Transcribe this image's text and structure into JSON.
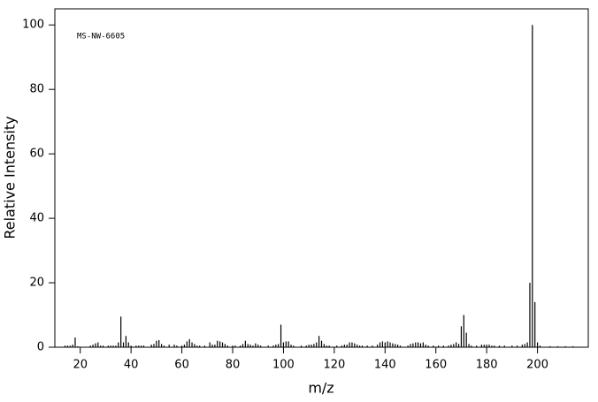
{
  "chart_data": {
    "type": "bar",
    "annotation": "MS-NW-6605",
    "xlabel": "m/z",
    "ylabel": "Relative Intensity",
    "color": "#000000",
    "xlim": [
      10,
      220
    ],
    "ylim": [
      0,
      105
    ],
    "xticks": [
      20,
      40,
      60,
      80,
      100,
      120,
      140,
      160,
      180,
      200
    ],
    "yticks": [
      0,
      20,
      40,
      60,
      80,
      100
    ],
    "x": [
      14,
      15,
      16,
      17,
      18,
      19,
      24,
      25,
      26,
      27,
      28,
      29,
      31,
      32,
      33,
      34,
      35,
      36,
      37,
      38,
      39,
      40,
      42,
      43,
      44,
      45,
      48,
      49,
      50,
      51,
      52,
      53,
      55,
      57,
      58,
      60,
      61,
      62,
      63,
      64,
      65,
      66,
      67,
      69,
      71,
      72,
      73,
      74,
      75,
      76,
      77,
      78,
      80,
      81,
      83,
      84,
      85,
      86,
      87,
      88,
      89,
      90,
      91,
      94,
      96,
      97,
      98,
      99,
      100,
      101,
      102,
      103,
      104,
      107,
      109,
      110,
      111,
      112,
      113,
      114,
      115,
      116,
      117,
      118,
      121,
      123,
      124,
      125,
      126,
      127,
      128,
      129,
      130,
      131,
      133,
      135,
      137,
      138,
      139,
      140,
      141,
      142,
      143,
      144,
      145,
      146,
      149,
      150,
      151,
      152,
      153,
      154,
      155,
      156,
      157,
      159,
      161,
      163,
      165,
      166,
      167,
      168,
      169,
      170,
      171,
      172,
      173,
      174,
      176,
      178,
      179,
      180,
      181,
      182,
      183,
      185,
      187,
      190,
      192,
      194,
      195,
      196,
      197,
      198,
      199,
      200,
      201,
      205,
      208,
      211,
      214
    ],
    "values": [
      0.5,
      0.5,
      0.5,
      0.8,
      3,
      0.3,
      0.5,
      0.8,
      1.2,
      1.5,
      0.5,
      0.5,
      0.5,
      0.5,
      0.5,
      0.5,
      1.5,
      9.5,
      1.5,
      3.5,
      1.5,
      0.5,
      0.5,
      0.5,
      0.5,
      0.5,
      0.8,
      1,
      2,
      2.2,
      1,
      0.5,
      0.8,
      0.8,
      0.5,
      0.5,
      0.8,
      1.8,
      2.5,
      1.5,
      1,
      0.5,
      0.5,
      0.5,
      1.5,
      0.8,
      0.8,
      2,
      1.8,
      1.5,
      1,
      0.5,
      0.5,
      0.5,
      0.5,
      1,
      2,
      1,
      0.8,
      0.5,
      1.2,
      0.8,
      0.5,
      0.5,
      0.5,
      0.8,
      1,
      7,
      1.5,
      1.8,
      1.8,
      0.8,
      0.5,
      0.5,
      0.5,
      0.8,
      0.8,
      1,
      1.5,
      3.5,
      2,
      1,
      0.5,
      0.5,
      0.5,
      0.5,
      0.8,
      0.8,
      1.5,
      1.5,
      1.2,
      0.8,
      0.5,
      0.5,
      0.5,
      0.5,
      0.8,
      1.5,
      1.8,
      1.5,
      1.8,
      1.5,
      1.2,
      1,
      0.8,
      0.5,
      0.5,
      1,
      1.2,
      1.5,
      1.5,
      1.2,
      1.5,
      0.8,
      0.5,
      0.5,
      0.5,
      0.5,
      0.5,
      0.8,
      1,
      1.5,
      1,
      6.5,
      10,
      4.5,
      1,
      0.5,
      0.5,
      0.8,
      0.8,
      0.8,
      0.8,
      0.5,
      0.5,
      0.5,
      0.5,
      0.5,
      0.5,
      0.8,
      1,
      1.5,
      20,
      100,
      14,
      1.5,
      0.5,
      0.3,
      0.3,
      0.3,
      0.3
    ]
  }
}
